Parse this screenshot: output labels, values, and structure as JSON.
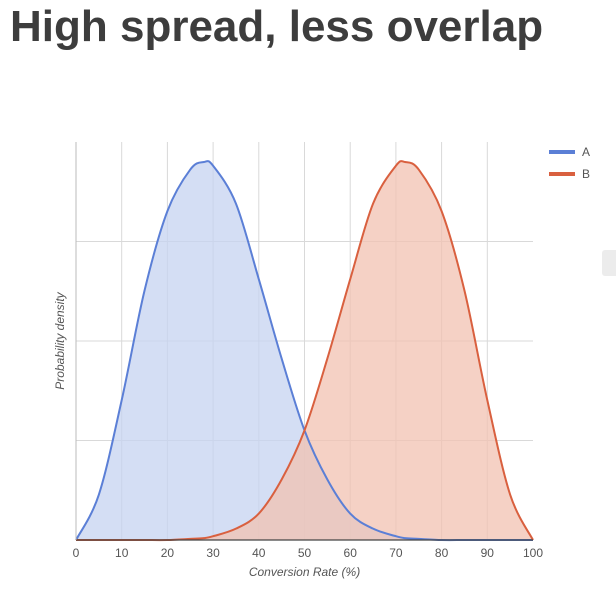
{
  "title": "High spread, less overlap",
  "chart_data": {
    "type": "area",
    "xlabel": "Conversion Rate (%)",
    "ylabel": "Probability density",
    "xlim": [
      0,
      100
    ],
    "x_ticks": [
      0,
      10,
      20,
      30,
      40,
      50,
      60,
      70,
      80,
      90,
      100
    ],
    "grid": true,
    "legend_position": "top-right",
    "x": [
      0,
      5,
      10,
      15,
      20,
      25,
      28,
      30,
      35,
      40,
      45,
      50,
      55,
      60,
      65,
      70,
      72,
      75,
      80,
      85,
      90,
      95,
      100
    ],
    "series": [
      {
        "name": "A",
        "color": "#5b7fd6",
        "fill": "#c5d3f0",
        "values": [
          0.0,
          0.12,
          0.37,
          0.66,
          0.87,
          0.98,
          1.0,
          0.99,
          0.89,
          0.69,
          0.48,
          0.29,
          0.16,
          0.07,
          0.03,
          0.01,
          0.005,
          0.003,
          0.0,
          0.0,
          0.0,
          0.0,
          0.0
        ]
      },
      {
        "name": "B",
        "color": "#d9603f",
        "fill": "#f2c1b2",
        "values": [
          0.0,
          0.0,
          0.0,
          0.0,
          0.0,
          0.003,
          0.005,
          0.01,
          0.03,
          0.07,
          0.16,
          0.29,
          0.48,
          0.69,
          0.89,
          0.99,
          1.0,
          0.98,
          0.87,
          0.66,
          0.37,
          0.12,
          0.0
        ]
      }
    ]
  }
}
